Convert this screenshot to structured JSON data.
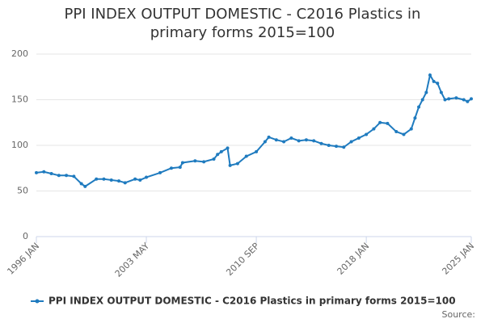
{
  "chart_data": {
    "type": "line",
    "title": "PPI INDEX OUTPUT DOMESTIC - C2016 Plastics in primary forms 2015=100",
    "source": "Source:",
    "x": [
      "1996-01",
      "1996-07",
      "1997-01",
      "1997-07",
      "1998-01",
      "1998-07",
      "1999-01",
      "1999-04",
      "2000-01",
      "2000-07",
      "2001-01",
      "2001-07",
      "2001-12",
      "2002-08",
      "2002-12",
      "2003-05",
      "2004-04",
      "2005-01",
      "2005-08",
      "2005-10",
      "2006-08",
      "2007-03",
      "2007-11",
      "2008-02",
      "2008-05",
      "2008-10",
      "2008-12",
      "2009-06",
      "2010-01",
      "2010-09",
      "2011-04",
      "2011-07",
      "2012-01",
      "2012-07",
      "2013-01",
      "2013-07",
      "2014-01",
      "2014-07",
      "2015-01",
      "2015-07",
      "2016-01",
      "2016-07",
      "2017-01",
      "2017-07",
      "2018-01",
      "2018-07",
      "2018-12",
      "2019-06",
      "2020-01",
      "2020-07",
      "2021-01",
      "2021-04",
      "2021-07",
      "2021-10",
      "2022-01",
      "2022-04",
      "2022-07",
      "2022-10",
      "2023-01",
      "2023-04",
      "2023-07",
      "2024-01",
      "2024-07",
      "2024-10",
      "2025-01"
    ],
    "series": [
      {
        "name": "PPI INDEX OUTPUT DOMESTIC - C2016 Plastics in primary forms 2015=100",
        "color": "#1f7bbf",
        "values": [
          70,
          71,
          69,
          67,
          67,
          66,
          58,
          55,
          63,
          63,
          62,
          61,
          59,
          63,
          62,
          65,
          70,
          75,
          76,
          81,
          83,
          82,
          85,
          90,
          93,
          97,
          78,
          80,
          88,
          93,
          104,
          109,
          106,
          104,
          108,
          105,
          106,
          105,
          102,
          100,
          99,
          98,
          104,
          108,
          112,
          118,
          125,
          124,
          115,
          112,
          118,
          130,
          142,
          150,
          158,
          177,
          170,
          168,
          158,
          150,
          151,
          152,
          150,
          148,
          151
        ]
      }
    ],
    "ylim": [
      0,
      200
    ],
    "yticks": [
      0,
      50,
      100,
      150,
      200
    ],
    "xlim": [
      "1996-01",
      "2025-01"
    ],
    "xticks": [
      {
        "value": "1996-01",
        "label": "1996 JAN"
      },
      {
        "value": "2003-05",
        "label": "2003 MAY"
      },
      {
        "value": "2010-09",
        "label": "2010 SEP"
      },
      {
        "value": "2018-01",
        "label": "2018 JAN"
      },
      {
        "value": "2025-01",
        "label": "2025 JAN"
      }
    ],
    "grid": true,
    "legend": "bottom"
  }
}
